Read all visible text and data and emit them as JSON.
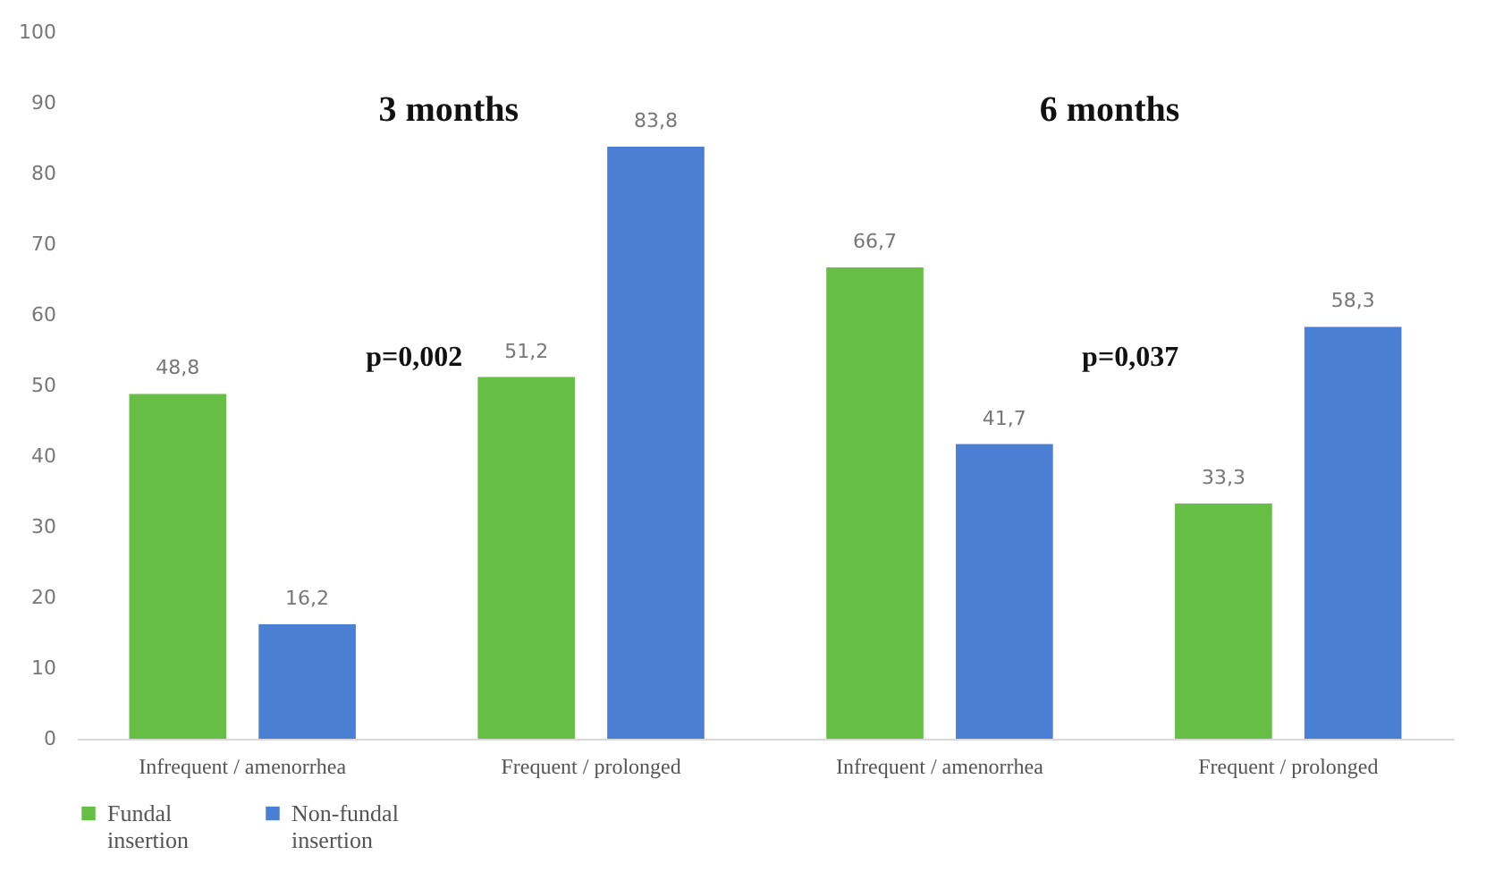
{
  "chart_data": {
    "type": "bar",
    "categories": [
      "Infrequent / amenorrhea",
      "Frequent / prolonged",
      "Infrequent / amenorrhea",
      "Frequent / prolonged"
    ],
    "series": [
      {
        "name": "Fundal insertion",
        "color": "#66bf44",
        "values": [
          48.8,
          51.2,
          66.7,
          33.3
        ],
        "value_labels": [
          "48,8",
          "51,2",
          "66,7",
          "33,3"
        ]
      },
      {
        "name": "Non-fundal insertion",
        "color": "#4a7fd4",
        "values": [
          16.2,
          83.8,
          41.7,
          58.3
        ],
        "value_labels": [
          "16,2",
          "83,8",
          "41,7",
          "58,3"
        ]
      }
    ],
    "ylim": [
      0,
      100
    ],
    "yticks": [
      0,
      10,
      20,
      30,
      40,
      50,
      60,
      70,
      80,
      90,
      100
    ],
    "grid": false,
    "legend": "bottom",
    "annotations": [
      "3 months",
      "6 months",
      "p=0,002",
      "p=0,037"
    ]
  }
}
